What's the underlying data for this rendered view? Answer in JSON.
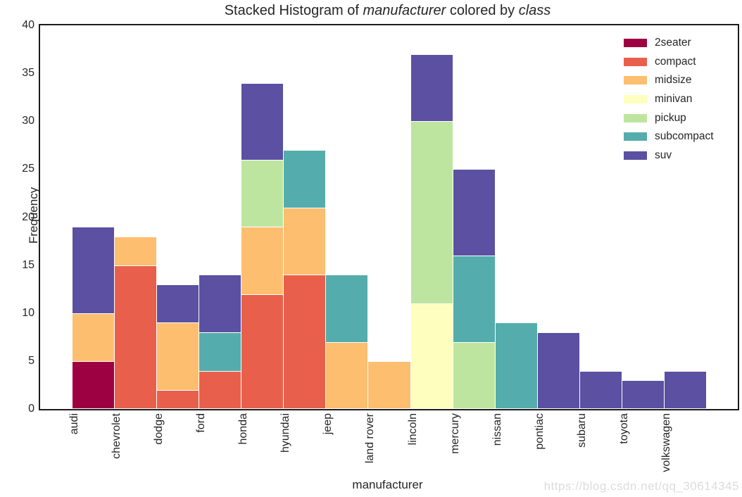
{
  "title": {
    "prefix": "Stacked Histogram of ",
    "italic1": "manufacturer",
    "middle": " colored by ",
    "italic2": "class"
  },
  "axes": {
    "xlabel": "manufacturer",
    "ylabel": "Frequency",
    "yticks": [
      0,
      5,
      10,
      15,
      20,
      25,
      30,
      35,
      40
    ],
    "ylim": [
      0,
      40
    ]
  },
  "legend": {
    "position": "upper right",
    "items": [
      {
        "label": "2seater",
        "color": "#9e0142"
      },
      {
        "label": "compact",
        "color": "#e8604b"
      },
      {
        "label": "midsize",
        "color": "#fdbe70"
      },
      {
        "label": "minivan",
        "color": "#feffbe"
      },
      {
        "label": "pickup",
        "color": "#bee5a0"
      },
      {
        "label": "subcompact",
        "color": "#54adac"
      },
      {
        "label": "suv",
        "color": "#5b50a2"
      }
    ]
  },
  "watermark": "https://blog.csdn.net/qq_30614345",
  "chart_data": {
    "type": "bar",
    "stacked": true,
    "title": "Stacked Histogram of manufacturer colored by class",
    "xlabel": "manufacturer",
    "ylabel": "Frequency",
    "ylim": [
      0,
      40
    ],
    "grid": false,
    "legend_position": "upper right",
    "categories": [
      "audi",
      "chevrolet",
      "dodge",
      "ford",
      "honda",
      "hyundai",
      "jeep",
      "land rover",
      "lincoln",
      "mercury",
      "nissan",
      "pontiac",
      "subaru",
      "toyota",
      "volkswagen"
    ],
    "series": [
      {
        "name": "2seater",
        "color": "#9e0142",
        "values": [
          5,
          0,
          0,
          0,
          0,
          0,
          0,
          0,
          0,
          0,
          0,
          0,
          0,
          0,
          0
        ]
      },
      {
        "name": "compact",
        "color": "#e8604b",
        "values": [
          0,
          15,
          2,
          4,
          12,
          14,
          0,
          0,
          0,
          0,
          0,
          0,
          0,
          0,
          0
        ]
      },
      {
        "name": "midsize",
        "color": "#fdbe70",
        "values": [
          5,
          3,
          7,
          0,
          7,
          7,
          7,
          5,
          0,
          0,
          0,
          0,
          0,
          0,
          0
        ]
      },
      {
        "name": "minivan",
        "color": "#feffbe",
        "values": [
          0,
          0,
          0,
          0,
          0,
          0,
          0,
          0,
          11,
          0,
          0,
          0,
          0,
          0,
          0
        ]
      },
      {
        "name": "pickup",
        "color": "#bee5a0",
        "values": [
          0,
          0,
          0,
          0,
          7,
          0,
          0,
          0,
          19,
          7,
          0,
          0,
          0,
          0,
          0
        ]
      },
      {
        "name": "subcompact",
        "color": "#54adac",
        "values": [
          0,
          0,
          0,
          4,
          0,
          6,
          7,
          0,
          0,
          9,
          9,
          0,
          0,
          0,
          0
        ]
      },
      {
        "name": "suv",
        "color": "#5b50a2",
        "values": [
          9,
          0,
          4,
          6,
          8,
          0,
          0,
          0,
          7,
          9,
          0,
          8,
          4,
          3,
          4
        ]
      }
    ],
    "totals": [
      19,
      18,
      13,
      14,
      34,
      27,
      14,
      5,
      37,
      25,
      9,
      8,
      4,
      3,
      4
    ]
  }
}
